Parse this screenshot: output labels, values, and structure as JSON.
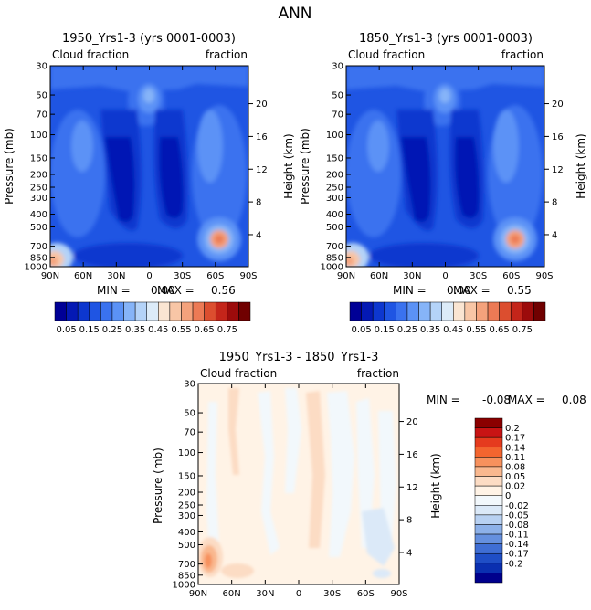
{
  "page_title": "ANN",
  "colors": {
    "cb_main": [
      "#000096",
      "#0419b4",
      "#0d37cf",
      "#1f55e3",
      "#3a72ef",
      "#5b92f6",
      "#86b4f8",
      "#b4d3f8",
      "#dcebf8",
      "#fae5d2",
      "#f8c6a6",
      "#f4a27c",
      "#ec7a55",
      "#dc4e2f",
      "#c4251a",
      "#9c0b0b",
      "#700000"
    ],
    "cb_diff": [
      "#8b0000",
      "#c81414",
      "#e53b1e",
      "#f3652f",
      "#f7915d",
      "#f9b88f",
      "#fcdcc4",
      "#fff3e6",
      "#f2f8fc",
      "#dbe9f8",
      "#b8d1f2",
      "#8db1e9",
      "#6590df",
      "#3f6ed4",
      "#1f4ec6",
      "#0a2fb0",
      "#00008c"
    ],
    "grid_box": "#000000"
  },
  "chart_data": [
    {
      "type": "heatmap",
      "title": "1950_Yrs1-3 (yrs 0001-0003)",
      "left_label": "Cloud fraction",
      "right_label": "fraction",
      "ylabel": "Pressure (mb)",
      "y2label": "Height (km)",
      "x_ticks": [
        "90N",
        "60N",
        "30N",
        "0",
        "30S",
        "60S",
        "90S"
      ],
      "y_ticks": [
        "30",
        "50",
        "70",
        "100",
        "150",
        "200",
        "250",
        "300",
        "400",
        "500",
        "700",
        "850",
        "1000"
      ],
      "y2_ticks": [
        "20",
        "16",
        "12",
        "8",
        "4"
      ],
      "min_label": "MIN =",
      "min_value": "0.00",
      "max_label": "MAX =",
      "max_value": "0.56",
      "colorbar_labels": [
        "0.05",
        "0.15",
        "0.25",
        "0.35",
        "0.45",
        "0.55",
        "0.65",
        "0.75"
      ]
    },
    {
      "type": "heatmap",
      "title": "1850_Yrs1-3 (yrs 0001-0003)",
      "left_label": "Cloud fraction",
      "right_label": "fraction",
      "ylabel": "Pressure (mb)",
      "y2label": "Height (km)",
      "x_ticks": [
        "90N",
        "60N",
        "30N",
        "0",
        "30S",
        "60S",
        "90S"
      ],
      "y_ticks": [
        "30",
        "50",
        "70",
        "100",
        "150",
        "200",
        "250",
        "300",
        "400",
        "500",
        "700",
        "850",
        "1000"
      ],
      "y2_ticks": [
        "20",
        "16",
        "12",
        "8",
        "4"
      ],
      "min_label": "MIN =",
      "min_value": "0.00",
      "max_label": "MAX =",
      "max_value": "0.55",
      "colorbar_labels": [
        "0.05",
        "0.15",
        "0.25",
        "0.35",
        "0.45",
        "0.55",
        "0.65",
        "0.75"
      ]
    },
    {
      "type": "heatmap",
      "title": "1950_Yrs1-3 - 1850_Yrs1-3",
      "left_label": "Cloud fraction",
      "right_label": "fraction",
      "ylabel": "Pressure (mb)",
      "y2label": "Height (km)",
      "x_ticks": [
        "90N",
        "60N",
        "30N",
        "0",
        "30S",
        "60S",
        "90S"
      ],
      "y_ticks": [
        "30",
        "50",
        "70",
        "100",
        "150",
        "200",
        "250",
        "300",
        "400",
        "500",
        "700",
        "850",
        "1000"
      ],
      "y2_ticks": [
        "20",
        "16",
        "12",
        "8",
        "4"
      ],
      "min_label": "MIN =",
      "min_value": "-0.08",
      "max_label": "MAX =",
      "max_value": "0.08",
      "colorbar_labels": [
        "0.2",
        "0.17",
        "0.14",
        "0.11",
        "0.08",
        "0.05",
        "0.02",
        "0",
        "-0.02",
        "-0.05",
        "-0.08",
        "-0.11",
        "-0.14",
        "-0.17",
        "-0.2"
      ]
    }
  ]
}
